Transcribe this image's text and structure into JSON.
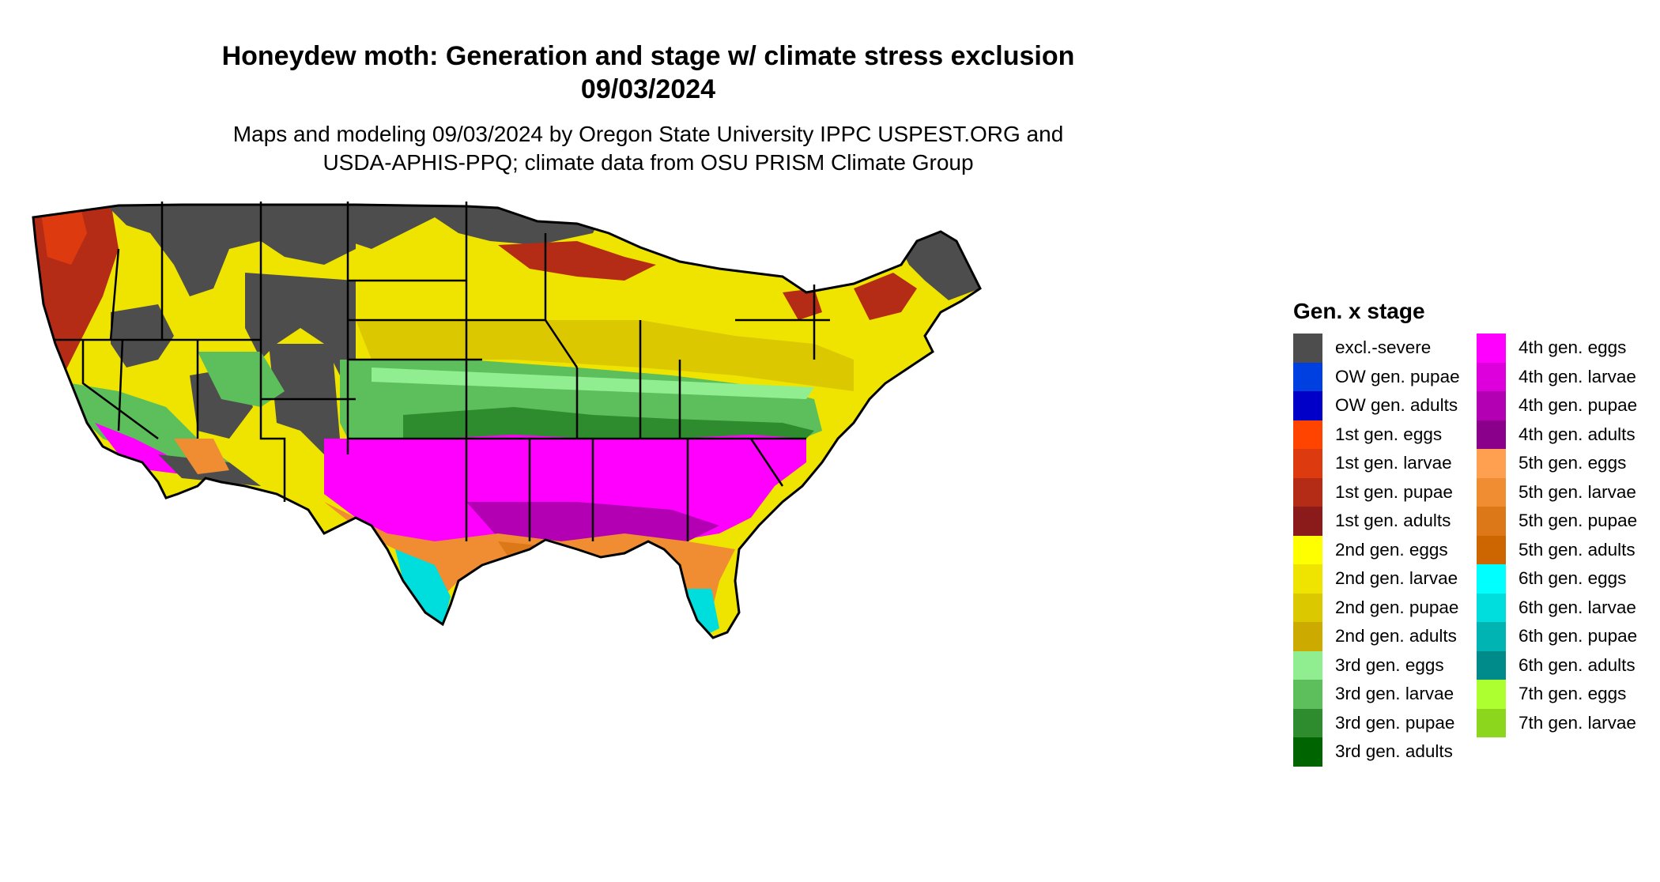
{
  "header": {
    "title_line1": "Honeydew moth: Generation and stage w/ climate stress exclusion",
    "title_line2": "09/03/2024",
    "subtitle_line1": "Maps and modeling 09/03/2024 by Oregon State University IPPC USPEST.ORG and",
    "subtitle_line2": "USDA-APHIS-PPQ; climate data from OSU PRISM Climate Group"
  },
  "legend": {
    "title": "Gen. x stage",
    "column1": [
      {
        "label": "excl.-severe",
        "color": "#4d4d4d"
      },
      {
        "label": "OW gen. pupae",
        "color": "#0040e0"
      },
      {
        "label": "OW gen. adults",
        "color": "#0000c8"
      },
      {
        "label": "1st gen. eggs",
        "color": "#ff4400"
      },
      {
        "label": "1st gen. larvae",
        "color": "#de3a10"
      },
      {
        "label": "1st gen. pupae",
        "color": "#b52c16"
      },
      {
        "label": "1st gen. adults",
        "color": "#8b1a1a"
      },
      {
        "label": "2nd gen. eggs",
        "color": "#ffff00"
      },
      {
        "label": "2nd gen. larvae",
        "color": "#efe400"
      },
      {
        "label": "2nd gen. pupae",
        "color": "#dcc800"
      },
      {
        "label": "2nd gen. adults",
        "color": "#ccaa00"
      },
      {
        "label": "3rd gen. eggs",
        "color": "#90ee90"
      },
      {
        "label": "3rd gen. larvae",
        "color": "#5cbf5c"
      },
      {
        "label": "3rd gen. pupae",
        "color": "#2e8b2e"
      },
      {
        "label": "3rd gen. adults",
        "color": "#006400"
      }
    ],
    "column2": [
      {
        "label": "4th gen. eggs",
        "color": "#ff00ff"
      },
      {
        "label": "4th gen. larvae",
        "color": "#dd00dd"
      },
      {
        "label": "4th gen. pupae",
        "color": "#b300b3"
      },
      {
        "label": "4th gen. adults",
        "color": "#8b008b"
      },
      {
        "label": "5th gen. eggs",
        "color": "#ffa050"
      },
      {
        "label": "5th gen. larvae",
        "color": "#f08c32"
      },
      {
        "label": "5th gen. pupae",
        "color": "#dc7818"
      },
      {
        "label": "5th gen. adults",
        "color": "#cd6600"
      },
      {
        "label": "6th gen. eggs",
        "color": "#00ffff"
      },
      {
        "label": "6th gen. larvae",
        "color": "#00dddd"
      },
      {
        "label": "6th gen. pupae",
        "color": "#00b4b4"
      },
      {
        "label": "6th gen. adults",
        "color": "#008b8b"
      },
      {
        "label": "7th gen. eggs",
        "color": "#adff2f"
      },
      {
        "label": "7th gen. larvae",
        "color": "#8cd61e"
      }
    ]
  },
  "map": {
    "region": "Contiguous United States",
    "style": "state boundaries in black"
  }
}
